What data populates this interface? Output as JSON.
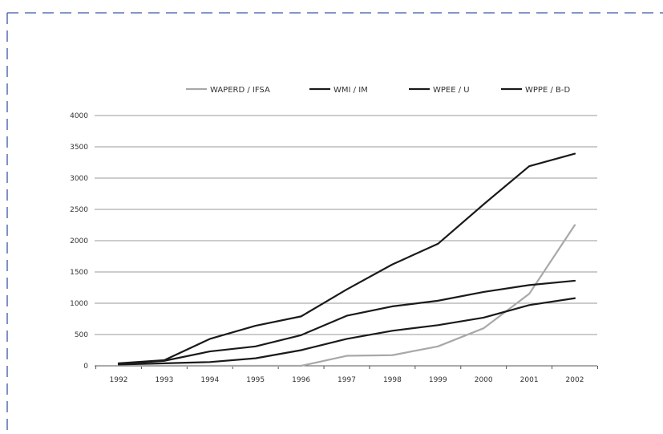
{
  "chart_data": {
    "type": "line",
    "title": "",
    "xlabel": "",
    "ylabel": "",
    "x": [
      "1992",
      "1993",
      "1994",
      "1995",
      "1996",
      "1997",
      "1998",
      "1999",
      "2000",
      "2001",
      "2002"
    ],
    "ylim": [
      0,
      4000
    ],
    "yticks": [
      "0",
      "500",
      "1000",
      "1500",
      "2000",
      "2500",
      "3000",
      "3500",
      "4000"
    ],
    "grid": true,
    "legend_position": "top",
    "series": [
      {
        "name": "WAPERD / IFSA",
        "color": "#a8a8a8",
        "values": [
          0,
          0,
          0,
          0,
          0,
          160,
          170,
          310,
          600,
          1150,
          2250
        ]
      },
      {
        "name": "WMI / IM",
        "color": "#1a1a1a",
        "values": [
          40,
          90,
          430,
          640,
          790,
          1220,
          1620,
          1950,
          2580,
          3190,
          3390
        ]
      },
      {
        "name": "WPEE / U",
        "color": "#1a1a1a",
        "values": [
          30,
          80,
          230,
          310,
          490,
          800,
          950,
          1040,
          1180,
          1290,
          1360
        ]
      },
      {
        "name": "WPPE / B-D",
        "color": "#1a1a1a",
        "values": [
          20,
          40,
          60,
          120,
          250,
          430,
          560,
          650,
          770,
          970,
          1080
        ]
      }
    ]
  }
}
